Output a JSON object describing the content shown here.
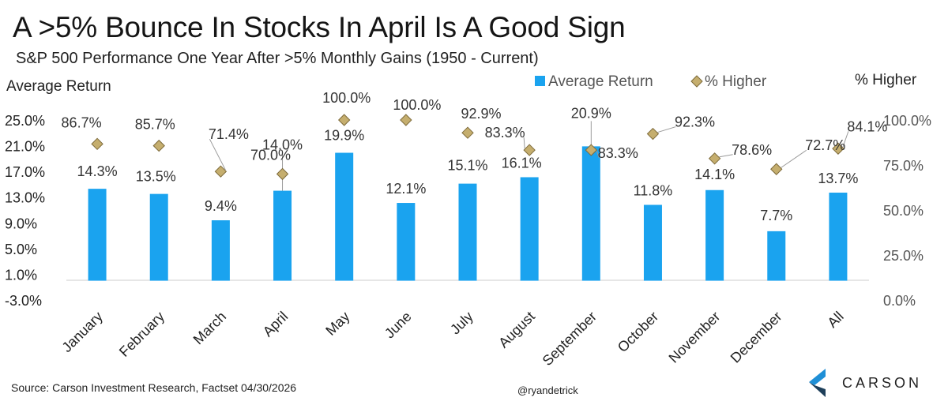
{
  "header": {
    "title": "A >5% Bounce In Stocks In April Is A Good Sign",
    "subtitle": "S&P 500 Performance One Year After >5% Monthly Gains (1950 - Current)"
  },
  "footer": {
    "source": "Source: Carson Investment Research, Factset 04/30/2026",
    "handle": "@ryandetrick"
  },
  "logo": {
    "name": "CARSON",
    "icon": "carson-chevron-icon"
  },
  "colors": {
    "bar": "#1aa3ef",
    "diamond": "#c5ae6e",
    "diamond_stroke": "#7d6a3a",
    "leader": "#9a9a9a",
    "axis": "#cccccc",
    "logo_blue": "#1f8fd6",
    "logo_dark": "#1e3f5a"
  },
  "chart_data": {
    "type": "bar",
    "categories": [
      "January",
      "February",
      "March",
      "April",
      "May",
      "June",
      "July",
      "August",
      "September",
      "October",
      "November",
      "December",
      "All"
    ],
    "series": [
      {
        "name": "Average Return",
        "type": "bar",
        "axis": "left",
        "values": [
          14.3,
          13.5,
          9.4,
          14.0,
          19.9,
          12.1,
          15.1,
          16.1,
          20.9,
          11.8,
          14.1,
          7.7,
          13.7
        ],
        "labels": [
          "14.3%",
          "13.5%",
          "9.4%",
          "14.0%",
          "19.9%",
          "12.1%",
          "15.1%",
          "16.1%",
          "20.9%",
          "11.8%",
          "14.1%",
          "7.7%",
          "13.7%"
        ]
      },
      {
        "name": "% Higher",
        "type": "scatter",
        "marker": "diamond",
        "axis": "right",
        "values": [
          86.7,
          85.7,
          71.4,
          70.0,
          100.0,
          100.0,
          92.9,
          83.3,
          83.3,
          92.3,
          78.6,
          72.7,
          84.1
        ],
        "labels": [
          "86.7%",
          "85.7%",
          "71.4%",
          "70.0%",
          "100.0%",
          "100.0%",
          "92.9%",
          "83.3%",
          "83.3%",
          "92.3%",
          "78.6%",
          "72.7%",
          "84.1%"
        ]
      }
    ],
    "ylabel_left": "Average Return",
    "ylabel_right": "% Higher",
    "ylim_left": [
      -3.0,
      25.0
    ],
    "ylim_right": [
      0.0,
      100.0
    ],
    "yticks_left": [
      "25.0%",
      "21.0%",
      "17.0%",
      "13.0%",
      "9.0%",
      "5.0%",
      "1.0%",
      "-3.0%"
    ],
    "yticks_right": [
      "100.0%",
      "75.0%",
      "50.0%",
      "25.0%",
      "0.0%"
    ],
    "legend_position": "top-right",
    "grid": false
  }
}
